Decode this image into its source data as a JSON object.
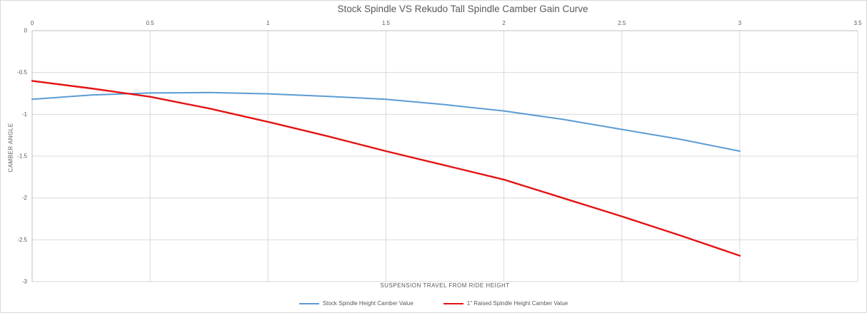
{
  "chart_data": {
    "type": "line",
    "title": "Stock Spindle VS Rekudo Tall Spindle Camber Gain Curve",
    "xlabel": "SUSPENSION TRAVEL FROM RIDE HEIGHT",
    "ylabel": "CAMBER ANGLE",
    "xlim": [
      0,
      3.5
    ],
    "ylim": [
      -3,
      0
    ],
    "x_ticks": [
      "0",
      "0.5",
      "1",
      "1.5",
      "2",
      "2.5",
      "3",
      "3.5"
    ],
    "y_ticks": [
      "0",
      "-0.5",
      "-1",
      "-1.5",
      "-2",
      "-2.5",
      "-3"
    ],
    "x_axis_position": "top",
    "grid": true,
    "legend_position": "bottom",
    "x": [
      0,
      0.25,
      0.5,
      0.75,
      1,
      1.25,
      1.5,
      1.75,
      2,
      2.25,
      2.5,
      2.75,
      3
    ],
    "series": [
      {
        "name": "Stock Spindle Height Camber Value",
        "color": "#5b9bd5",
        "values": [
          -0.82,
          -0.77,
          -0.745,
          -0.74,
          -0.755,
          -0.785,
          -0.82,
          -0.885,
          -0.96,
          -1.06,
          -1.18,
          -1.3,
          -1.44
        ]
      },
      {
        "name": "1\" Raised Spindle Height Camber Value",
        "color": "#e41313",
        "values": [
          -0.6,
          -0.69,
          -0.79,
          -0.93,
          -1.09,
          -1.26,
          -1.44,
          -1.61,
          -1.78,
          -2.0,
          -2.22,
          -2.45,
          -2.69
        ]
      }
    ],
    "colors": {
      "grid": "#d9d9d9",
      "axis": "#bfbfbf",
      "text": "#595959"
    }
  }
}
